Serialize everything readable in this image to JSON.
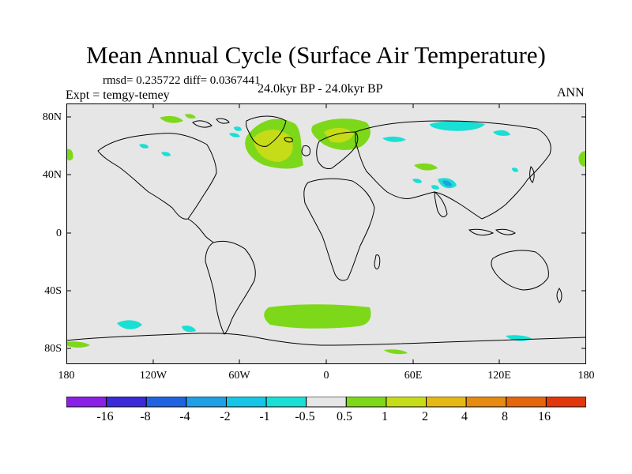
{
  "title": "Mean Annual Cycle (Surface Air Temperature)",
  "stats": "rmsd= 0.235722 diff= 0.0367441",
  "expt": "Expt = temgy-temey",
  "period": "24.0kyr BP - 24.0kyr BP",
  "season": "ANN",
  "lat_labels": [
    "80N",
    "40N",
    "0",
    "40S",
    "80S"
  ],
  "lon_labels": [
    "180",
    "120W",
    "60W",
    "0",
    "60E",
    "120E",
    "180"
  ],
  "colorbar": {
    "labels": [
      "-16",
      "-8",
      "-4",
      "-2",
      "-1",
      "-0.5",
      "0.5",
      "1",
      "2",
      "4",
      "8",
      "16"
    ],
    "colors": [
      "#8a1fe6",
      "#3a2ad8",
      "#1f63e0",
      "#1e9fe6",
      "#15c6e6",
      "#19dfd4",
      "#e6e6e6",
      "#7ed81a",
      "#c6dc18",
      "#e6b814",
      "#e68a10",
      "#e6660e",
      "#e0380a"
    ]
  },
  "colors": {
    "land_ocean_background": "#e6e6e6",
    "coastline": "#000000"
  }
}
